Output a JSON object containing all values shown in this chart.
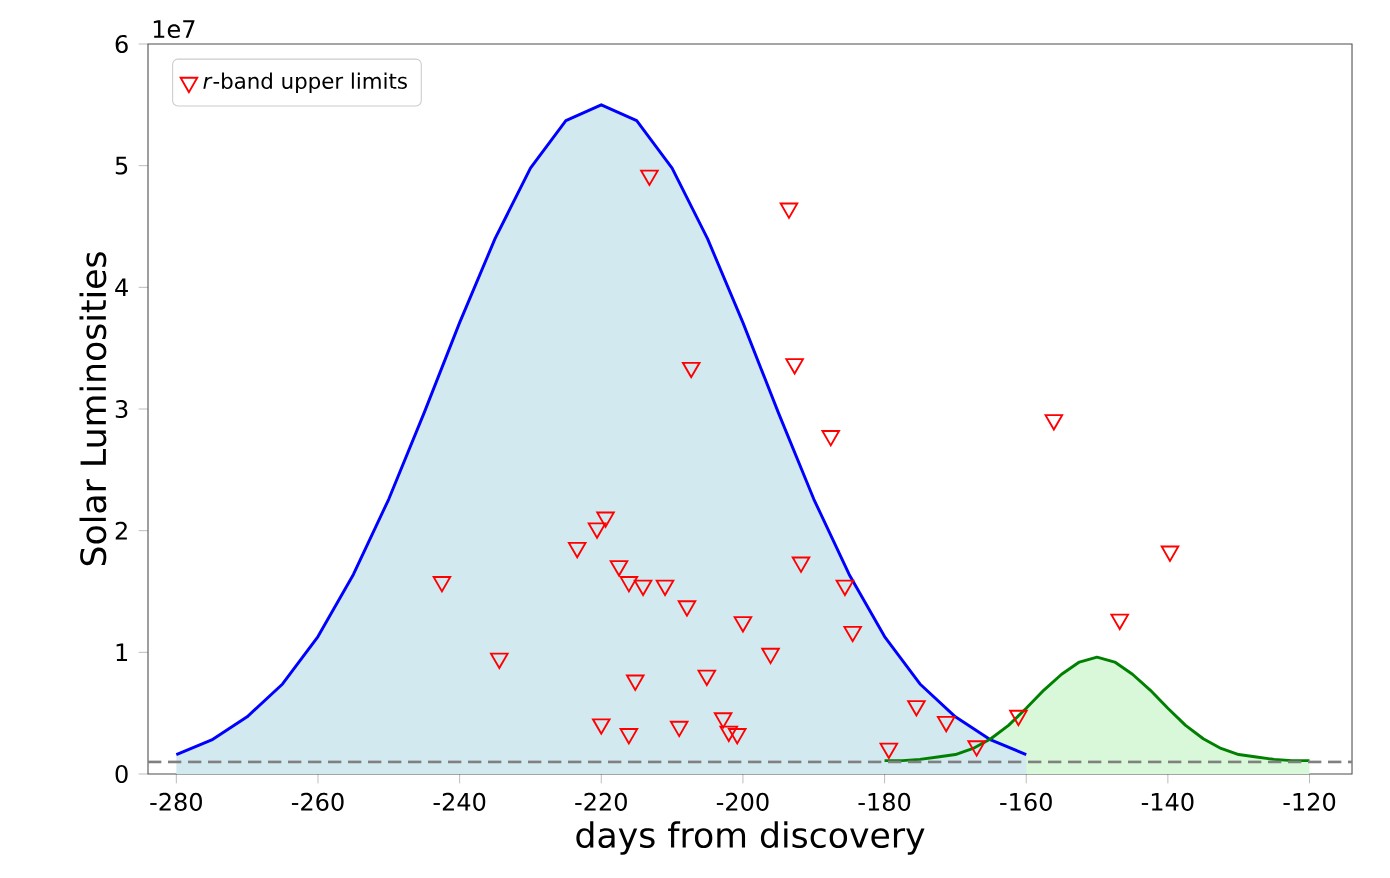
{
  "chart_data": {
    "type": "scatter",
    "xlabel": "days from discovery",
    "ylabel": "Solar Luminosities",
    "annotations": [
      "1e7"
    ],
    "xlim": [
      -284,
      -114
    ],
    "xticks": [
      -280,
      -260,
      -240,
      -220,
      -200,
      -180,
      -160,
      -140,
      -120
    ],
    "ylim": [
      0,
      6
    ],
    "yticks": [
      0,
      1,
      2,
      3,
      4,
      5,
      6
    ],
    "legend": "top left",
    "grid": false,
    "ref_lines": [
      {
        "axis": "y",
        "value": 0.1,
        "color": "#808080",
        "line_style": "dashed"
      }
    ],
    "series": [
      {
        "type": "area",
        "color": "#0000ff",
        "x": [
          -280,
          -275,
          -270,
          -265,
          -260,
          -255,
          -250,
          -245,
          -240,
          -235,
          -230,
          -225,
          -220,
          -215,
          -210,
          -205,
          -200,
          -195,
          -190,
          -185,
          -180,
          -175,
          -170,
          -165,
          -160
        ],
        "values": [
          0.16,
          0.28,
          0.47,
          0.74,
          1.13,
          1.64,
          2.26,
          2.97,
          3.71,
          4.4,
          4.98,
          5.37,
          5.5,
          5.37,
          4.98,
          4.4,
          3.71,
          2.97,
          2.26,
          1.64,
          1.13,
          0.74,
          0.47,
          0.28,
          0.16
        ]
      },
      {
        "type": "area",
        "color": "#008000",
        "x": [
          -180,
          -177.5,
          -175,
          -172.5,
          -170,
          -167.5,
          -165,
          -162.5,
          -160,
          -157.5,
          -155,
          -152.5,
          -150,
          -147.5,
          -145,
          -142.5,
          -140,
          -137.5,
          -135,
          -132.5,
          -130,
          -127.5,
          -125,
          -122.5,
          -120
        ],
        "values": [
          0.11,
          0.11,
          0.12,
          0.14,
          0.16,
          0.21,
          0.29,
          0.4,
          0.54,
          0.69,
          0.82,
          0.92,
          0.96,
          0.92,
          0.82,
          0.69,
          0.54,
          0.4,
          0.29,
          0.21,
          0.16,
          0.14,
          0.12,
          0.11,
          0.11
        ]
      },
      {
        "name": "*r*-band upper limits",
        "color": "#ff0000",
        "marker": "triangle",
        "x": [
          -242.5,
          -234.4,
          -223.4,
          -220.6,
          -219.4,
          -217.5,
          -216.1,
          -214.1,
          -211.0,
          -207.9,
          -200.0,
          -196.1,
          -215.2,
          -205.1,
          -220.0,
          -216.1,
          -209.0,
          -202.8,
          -202.0,
          -200.8,
          -191.8,
          -185.6,
          -184.5,
          -179.4,
          -213.2,
          -193.5,
          -207.3,
          -192.7,
          -187.6,
          -156.1,
          -139.7,
          -146.8,
          -175.5,
          -171.3,
          -167.0,
          -161.1
        ],
        "values": [
          1.58,
          0.95,
          1.86,
          2.02,
          2.11,
          1.71,
          1.58,
          1.55,
          1.55,
          1.38,
          1.25,
          0.99,
          0.77,
          0.81,
          0.41,
          0.33,
          0.39,
          0.46,
          0.35,
          0.33,
          1.74,
          1.55,
          1.17,
          0.21,
          4.92,
          4.65,
          3.34,
          3.37,
          2.78,
          2.91,
          1.83,
          1.27,
          0.56,
          0.43,
          0.23,
          0.48
        ]
      }
    ]
  }
}
